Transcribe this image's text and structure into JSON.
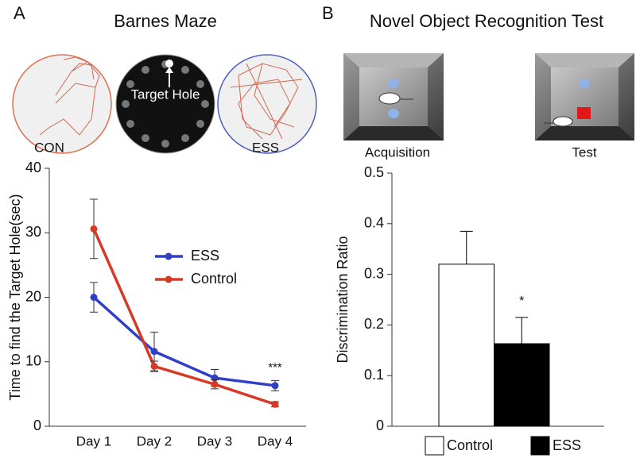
{
  "chart_data": [
    {
      "type": "line",
      "panel": "A",
      "title": "Barnes Maze",
      "image_labels": [
        "CON",
        "Target Hole",
        "ESS"
      ],
      "ylabel": "Time to find the Target Hole(sec)",
      "categories": [
        "Day 1",
        "Day 2",
        "Day 3",
        "Day 4"
      ],
      "series": [
        {
          "name": "ESS",
          "color": "#2f3fc8",
          "values": [
            20,
            11.6,
            7.5,
            6.3
          ],
          "errors": [
            2.3,
            3.0,
            1.3,
            0.8
          ]
        },
        {
          "name": "Control",
          "color": "#d63a26",
          "values": [
            30.6,
            9.3,
            6.5,
            3.4
          ],
          "errors": [
            4.6,
            0.8,
            0.7,
            0.4
          ]
        }
      ],
      "annotation": "***",
      "ylim": [
        0,
        40
      ],
      "yticks": [
        0,
        10,
        20,
        30,
        40
      ]
    },
    {
      "type": "bar",
      "panel": "B",
      "title": "Novel Object Recognition Test",
      "image_labels": [
        "Acquisition",
        "Test"
      ],
      "ylabel": "Discrimination Ratio",
      "categories": [
        "Control",
        "ESS"
      ],
      "values": [
        0.32,
        0.163
      ],
      "errors": [
        0.065,
        0.052
      ],
      "colors": [
        "#ffffff",
        "#000000"
      ],
      "annotation": "*",
      "ylim": [
        0,
        0.5
      ],
      "yticks": [
        0,
        0.1,
        0.2,
        0.3,
        0.4,
        0.5
      ]
    }
  ]
}
